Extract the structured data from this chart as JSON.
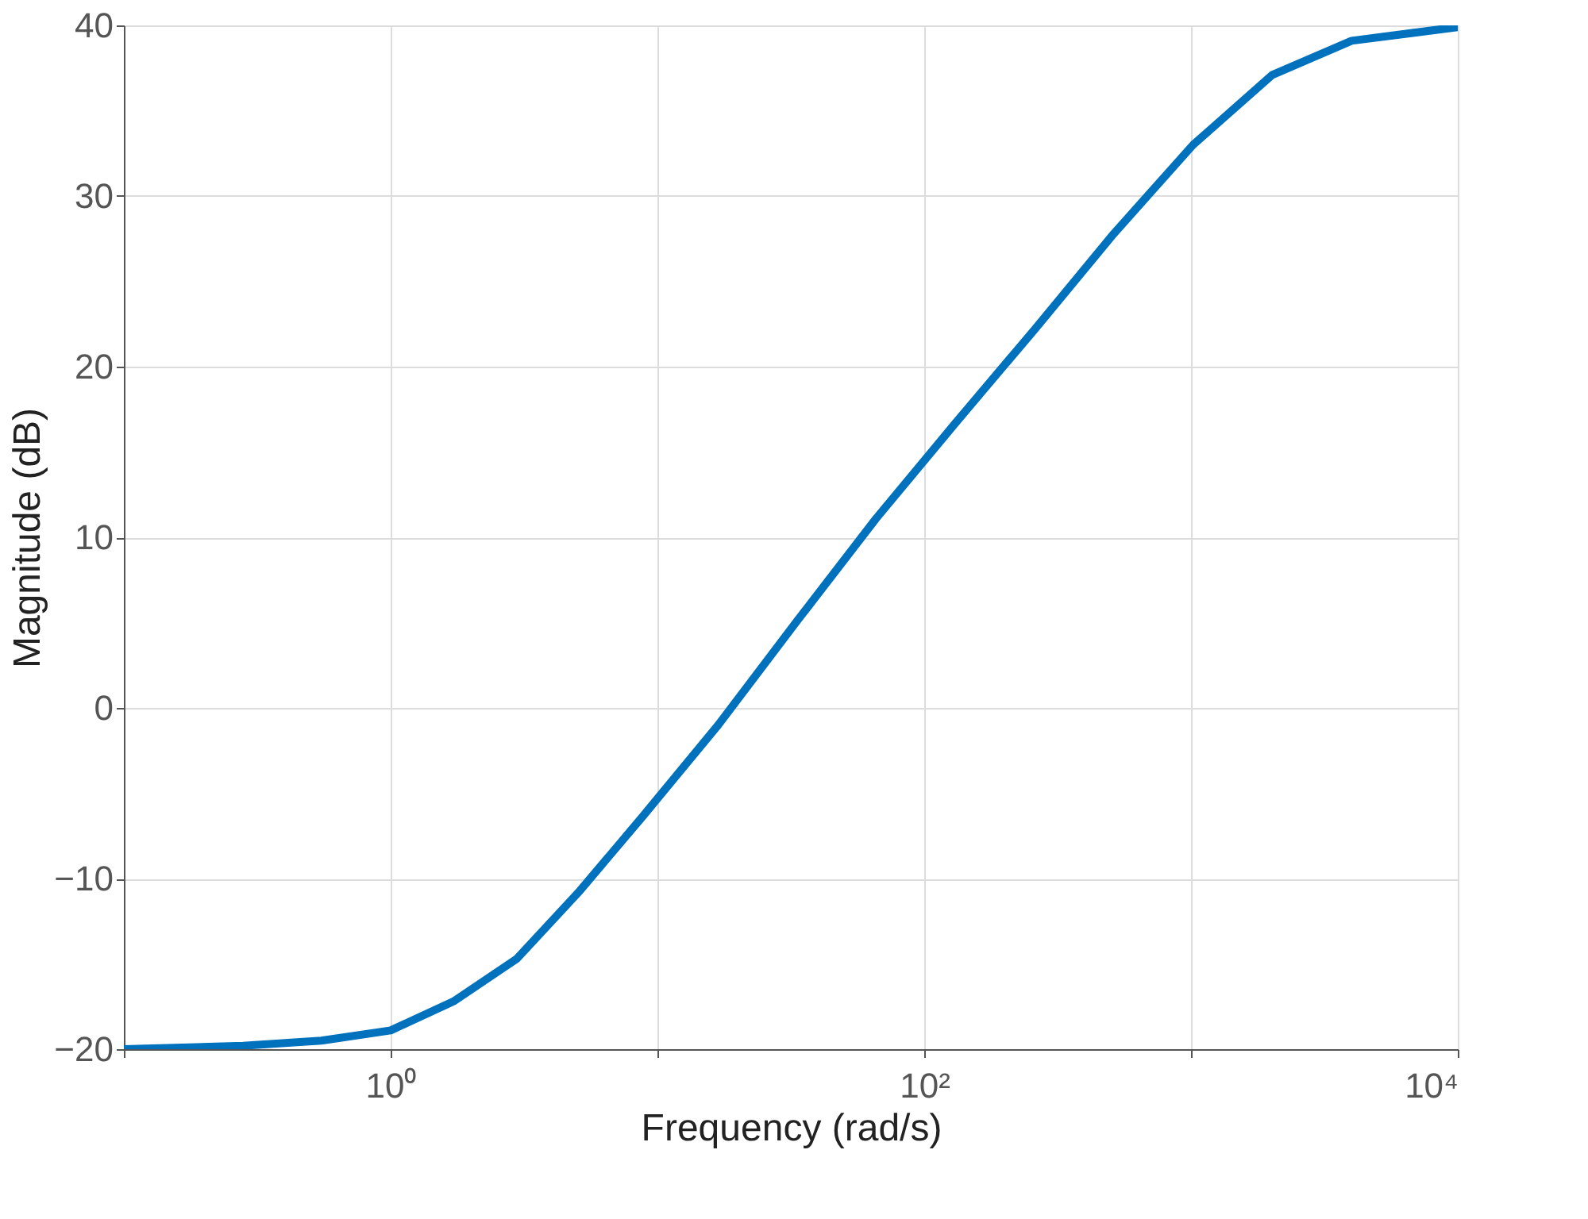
{
  "chart_data": {
    "type": "line",
    "xlabel": "Frequency  (rad/s)",
    "ylabel": "Magnitude (dB)",
    "log": "x",
    "grid": true,
    "marker": "none",
    "line_style": "solid",
    "xlim": [
      0.1,
      10000
    ],
    "ylim": [
      -20,
      40
    ],
    "xticks": [
      {
        "value": 0.1,
        "label": null
      },
      {
        "value": 1,
        "label": "10⁰"
      },
      {
        "value": 10,
        "label": null
      },
      {
        "value": 100,
        "label": "10²"
      },
      {
        "value": 1000,
        "label": null
      },
      {
        "value": 10000,
        "label": "10⁴"
      }
    ],
    "yticks": [
      -20,
      -10,
      0,
      10,
      20,
      30,
      40
    ],
    "x": [
      0.1,
      0.28,
      0.55,
      1,
      1.72,
      2.97,
      5.13,
      8.87,
      16.9,
      33.4,
      66,
      131,
      260,
      514,
      1018,
      2018,
      4000,
      10000
    ],
    "series": [
      {
        "color": "#0072bd",
        "values": [
          -20,
          -19.8,
          -19.5,
          -18.9,
          -17.2,
          -14.7,
          -10.7,
          -6.3,
          -1.0,
          5.1,
          11.1,
          16.7,
          22.2,
          27.8,
          33.0,
          37.1,
          39.1,
          39.9
        ]
      }
    ]
  }
}
